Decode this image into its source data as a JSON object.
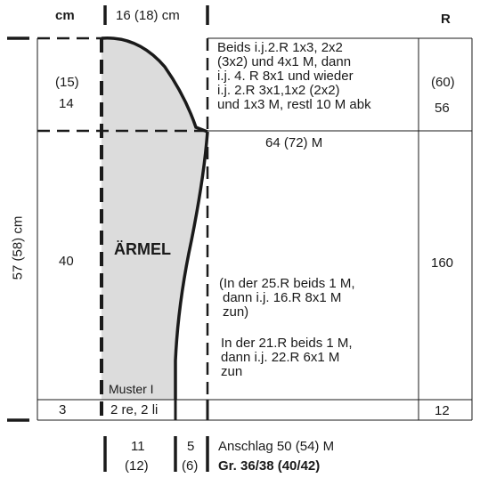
{
  "header": {
    "cm": "cm",
    "width_total": "16 (18) cm",
    "rows": "R"
  },
  "sections": {
    "cap": {
      "cm_alt": "(15)",
      "cm": "14",
      "rows_alt": "(60)",
      "rows": "56"
    },
    "body": {
      "cm": "40",
      "rows": "160"
    },
    "rib": {
      "cm": "3",
      "rows": "12",
      "label": "2 re, 2 li"
    }
  },
  "total_height": "57 (58) cm",
  "sleeve_label": "ÄRMEL",
  "pattern_label": "Muster I",
  "cap_instructions": [
    "Beids i.j.2.R 1x3, 2x2",
    "(3x2) und 4x1 M, dann",
    "i.j. 4. R 8x1 und wieder",
    "i.j. 2.R 3x1,1x2 (2x2)",
    "und 1x3 M, restl 10 M abk"
  ],
  "stitches_top": "64 (72) M",
  "increase_note_1": [
    "(In der 25.R beids 1 M,",
    "dann i.j. 16.R  8x1 M",
    "zun)"
  ],
  "increase_note_2": [
    "In der 21.R beids 1 M,",
    "dann i.j. 22.R 6x1 M",
    "zun"
  ],
  "bottom": {
    "width_a": "11",
    "width_a_alt": "(12)",
    "width_b": "5",
    "width_b_alt": "(6)",
    "cast_on": "Anschlag 50 (54) M",
    "sizes": "Gr. 36/38 (40/42)"
  }
}
